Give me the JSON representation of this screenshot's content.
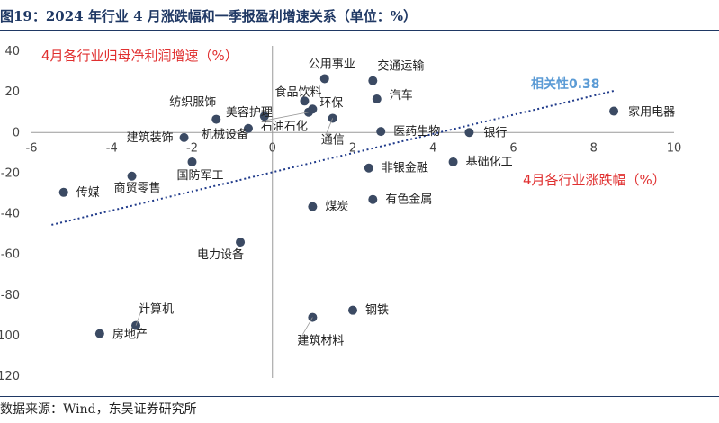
{
  "header": {
    "title": "图19：2024 年行业 4 月涨跌幅和一季报盈利增速关系（单位：%）"
  },
  "footer": {
    "source": "数据来源：Wind，东吴证券研究所"
  },
  "colors": {
    "title": "#1f3864",
    "point": "#3b4a63",
    "trend": "#1f3a8a",
    "axis_title": "#e03030",
    "correlation": "#5b9bd5"
  },
  "chart_data": {
    "type": "scatter",
    "xlabel": "4月各行业涨跌幅（%）",
    "ylabel": "4月各行业归母净利润增速（%）",
    "xlim": [
      -6,
      10
    ],
    "ylim": [
      -120,
      40
    ],
    "x_ticks": [
      -6,
      -4,
      -2,
      0,
      2,
      4,
      6,
      8,
      10
    ],
    "y_ticks": [
      40,
      20,
      0,
      -20,
      -40,
      -60,
      -80,
      -100,
      -120
    ],
    "x_tick_labels": [
      "-6",
      "-4",
      "-2",
      "0",
      "2",
      "4",
      "6",
      "8",
      "10"
    ],
    "y_tick_labels": [
      "40",
      "20",
      "0",
      "-20",
      "-40",
      "-60",
      "-80",
      "-100",
      "-120"
    ],
    "correlation_label": "相关性0.38",
    "trendline": {
      "x": [
        -5.5,
        8.5
      ],
      "y": [
        -45.5,
        20.5
      ]
    },
    "grid": false,
    "points": [
      {
        "name": "公用事业",
        "x": 1.3,
        "y": 26.5
      },
      {
        "name": "交通运输",
        "x": 2.5,
        "y": 25.5
      },
      {
        "name": "食品饮料",
        "x": 0.8,
        "y": 15.5
      },
      {
        "name": "汽车",
        "x": 2.6,
        "y": 16.5
      },
      {
        "name": "环保",
        "x": 1.0,
        "y": 11.5
      },
      {
        "name": "美容护理",
        "x": -0.2,
        "y": 8.0
      },
      {
        "name": "石油石化",
        "x": 0.9,
        "y": 10.0
      },
      {
        "name": "纺织服饰",
        "x": -1.4,
        "y": 6.5
      },
      {
        "name": "通信",
        "x": 1.5,
        "y": 7.0
      },
      {
        "name": "机械设备",
        "x": -0.6,
        "y": 2.0
      },
      {
        "name": "医药生物",
        "x": 2.7,
        "y": 0.5
      },
      {
        "name": "银行",
        "x": 4.9,
        "y": 0.0
      },
      {
        "name": "家用电器",
        "x": 8.5,
        "y": 10.5
      },
      {
        "name": "建筑装饰",
        "x": -2.2,
        "y": -2.5
      },
      {
        "name": "国防军工",
        "x": -2.0,
        "y": -14.5
      },
      {
        "name": "非银金融",
        "x": 2.4,
        "y": -17.5
      },
      {
        "name": "基础化工",
        "x": 4.5,
        "y": -14.5
      },
      {
        "name": "传媒",
        "x": -5.2,
        "y": -29.5
      },
      {
        "name": "商贸零售",
        "x": -3.5,
        "y": -21.5
      },
      {
        "name": "有色金属",
        "x": 2.5,
        "y": -33.0
      },
      {
        "name": "煤炭",
        "x": 1.0,
        "y": -36.5
      },
      {
        "name": "电力设备",
        "x": -0.8,
        "y": -54.0
      },
      {
        "name": "钢铁",
        "x": 2.0,
        "y": -87.5
      },
      {
        "name": "建筑材料",
        "x": 1.0,
        "y": -91.0
      },
      {
        "name": "计算机",
        "x": -3.4,
        "y": -95.0
      },
      {
        "name": "房地产",
        "x": -4.3,
        "y": -99.0
      }
    ]
  }
}
